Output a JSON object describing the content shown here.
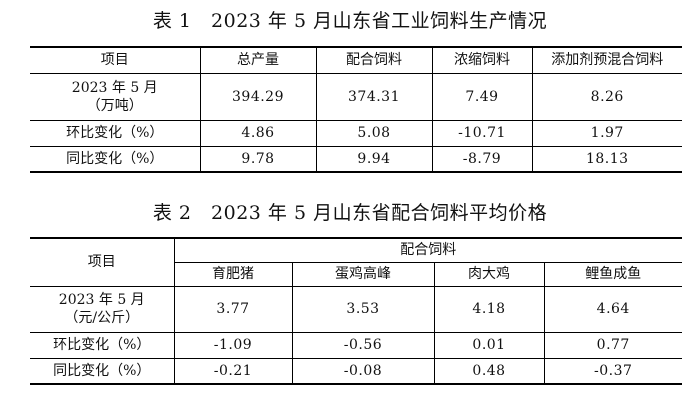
{
  "table1": {
    "title": "表 1　2023 年 5 月山东省工业饲料生产情况",
    "headers": [
      "项目",
      "总产量",
      "配合饲料",
      "浓缩饲料",
      "添加剂预混合饲料"
    ],
    "rows": [
      {
        "label_line1": "2023 年 5 月",
        "label_line2": "（万吨）",
        "values": [
          "394.29",
          "374.31",
          "7.49",
          "8.26"
        ]
      },
      {
        "label": "环比变化（%）",
        "values": [
          "4.86",
          "5.08",
          "-10.71",
          "1.97"
        ]
      },
      {
        "label": "同比变化（%）",
        "values": [
          "9.78",
          "9.94",
          "-8.79",
          "18.13"
        ]
      }
    ]
  },
  "table2": {
    "title": "表 2　2023 年 5 月山东省配合饲料平均价格",
    "header_item": "项目",
    "group_header": "配合饲料",
    "subheaders": [
      "育肥猪",
      "蛋鸡高峰",
      "肉大鸡",
      "鲤鱼成鱼"
    ],
    "rows": [
      {
        "label_line1": "2023 年 5 月",
        "label_line2": "（元/公斤）",
        "values": [
          "3.77",
          "3.53",
          "4.18",
          "4.64"
        ]
      },
      {
        "label": "环比变化（%）",
        "values": [
          "-1.09",
          "-0.56",
          "0.01",
          "0.77"
        ]
      },
      {
        "label": "同比变化（%）",
        "values": [
          "-0.21",
          "-0.08",
          "0.48",
          "-0.37"
        ]
      }
    ]
  }
}
